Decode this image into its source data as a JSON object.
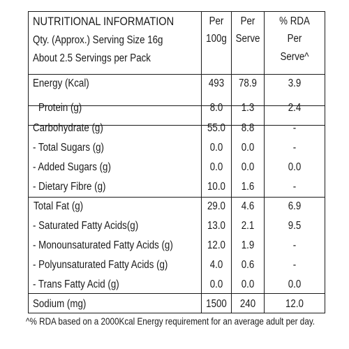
{
  "header": {
    "title": "NUTRITIONAL INFORMATION",
    "line2": "Qty. (Approx.) Serving Size 16g",
    "line3": "About 2.5 Servings per Pack",
    "col_per100": [
      "Per",
      "100g"
    ],
    "col_serve": [
      "Per",
      "Serve"
    ],
    "col_rda": [
      "% RDA",
      "Per",
      "Serve^"
    ]
  },
  "rows": [
    {
      "label": "Energy (Kcal)",
      "per100": "493",
      "serve": "78.9",
      "rda": "3.9"
    },
    {
      "label": "Protein (g)",
      "per100": "8.0",
      "serve": "1.3",
      "rda": "2.4"
    },
    {
      "label": "Carbohydrate (g)",
      "per100": "55.0",
      "serve": "8.8",
      "rda": "-"
    },
    {
      "label": "- Total Sugars (g)",
      "per100": "0.0",
      "serve": "0.0",
      "rda": "-"
    },
    {
      "label": "- Added Sugars (g)",
      "per100": "0.0",
      "serve": "0.0",
      "rda": "0.0"
    },
    {
      "label": "- Dietary Fibre (g)",
      "per100": "10.0",
      "serve": "1.6",
      "rda": "-"
    },
    {
      "label": "Total Fat (g)",
      "per100": "29.0",
      "serve": "4.6",
      "rda": "6.9"
    },
    {
      "label": "- Saturated Fatty Acids(g)",
      "per100": "13.0",
      "serve": "2.1",
      "rda": "9.5"
    },
    {
      "label": "- Monounsaturated Fatty Acids (g)",
      "per100": "12.0",
      "serve": "1.9",
      "rda": "-"
    },
    {
      "label": "- Polyunsaturated Fatty Acids (g)",
      "per100": "4.0",
      "serve": "0.6",
      "rda": "-"
    },
    {
      "label": "- Trans Fatty Acid (g)",
      "per100": "0.0",
      "serve": "0.0",
      "rda": "0.0"
    },
    {
      "label": "Sodium (mg)",
      "per100": "1500",
      "serve": "240",
      "rda": "12.0"
    }
  ],
  "footnote": "^% RDA based on a 2000Kcal Energy requirement for an average adult per day."
}
